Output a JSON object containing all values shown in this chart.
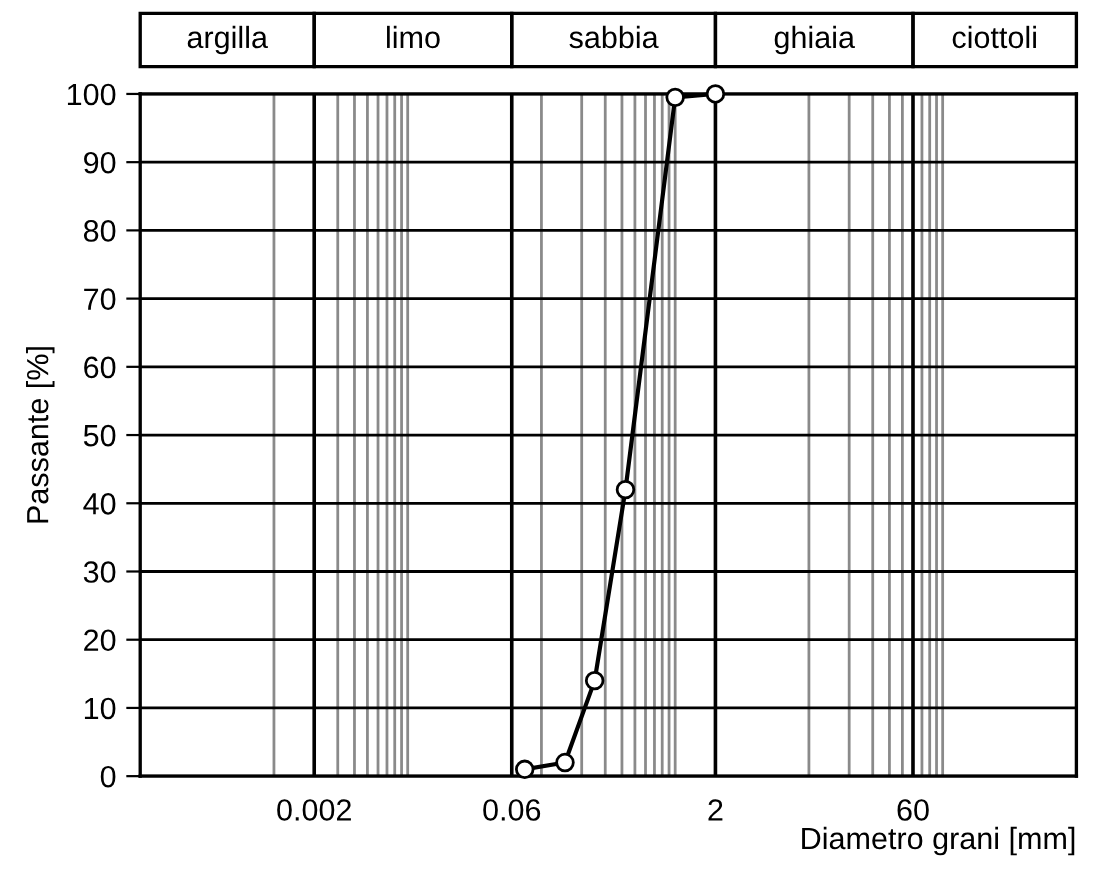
{
  "chart_data": {
    "type": "line",
    "xlabel": "Diametro grani [mm]",
    "ylabel": "Passante [%]",
    "x": [
      0.075,
      0.15,
      0.25,
      0.425,
      1,
      2
    ],
    "series": [
      {
        "color": "#000000",
        "values": [
          1,
          2,
          14,
          42,
          99.5,
          100
        ]
      }
    ],
    "log": "x",
    "marker": "circle",
    "line_style": "solid",
    "grid": true,
    "xlim": [
      0.0001,
      1000
    ],
    "xticks": [
      {
        "value": 0.001,
        "label": null
      },
      0.002,
      {
        "value": 0.003,
        "label": null
      },
      {
        "value": 0.004,
        "label": null
      },
      {
        "value": 0.005,
        "label": null
      },
      {
        "value": 0.006,
        "label": null
      },
      {
        "value": 0.007,
        "label": null
      },
      {
        "value": 0.008,
        "label": null
      },
      {
        "value": 0.009,
        "label": null
      },
      {
        "value": 0.01,
        "label": null
      },
      0.06,
      {
        "value": 0.1,
        "label": null
      },
      {
        "value": 0.2,
        "label": null
      },
      {
        "value": 0.3,
        "label": null
      },
      {
        "value": 0.4,
        "label": null
      },
      {
        "value": 0.5,
        "label": null
      },
      {
        "value": 0.6,
        "label": null
      },
      {
        "value": 0.7,
        "label": null
      },
      {
        "value": 0.8,
        "label": null
      },
      {
        "value": 0.9,
        "label": null
      },
      {
        "value": 1,
        "label": null
      },
      2,
      {
        "value": 10,
        "label": null
      },
      {
        "value": 20,
        "label": null
      },
      {
        "value": 30,
        "label": null
      },
      {
        "value": 40,
        "label": null
      },
      {
        "value": 50,
        "label": null
      },
      60,
      {
        "value": 70,
        "label": null
      },
      {
        "value": 80,
        "label": null
      },
      {
        "value": 90,
        "label": null
      },
      {
        "value": 100,
        "label": null
      }
    ],
    "ylim": [
      0,
      100
    ],
    "yticks": [
      0,
      10,
      20,
      30,
      40,
      50,
      60,
      70,
      80,
      90,
      100
    ],
    "annotations": [
      "argilla",
      "limo",
      "sabbia",
      "ghiaia",
      "ciottoli"
    ]
  }
}
